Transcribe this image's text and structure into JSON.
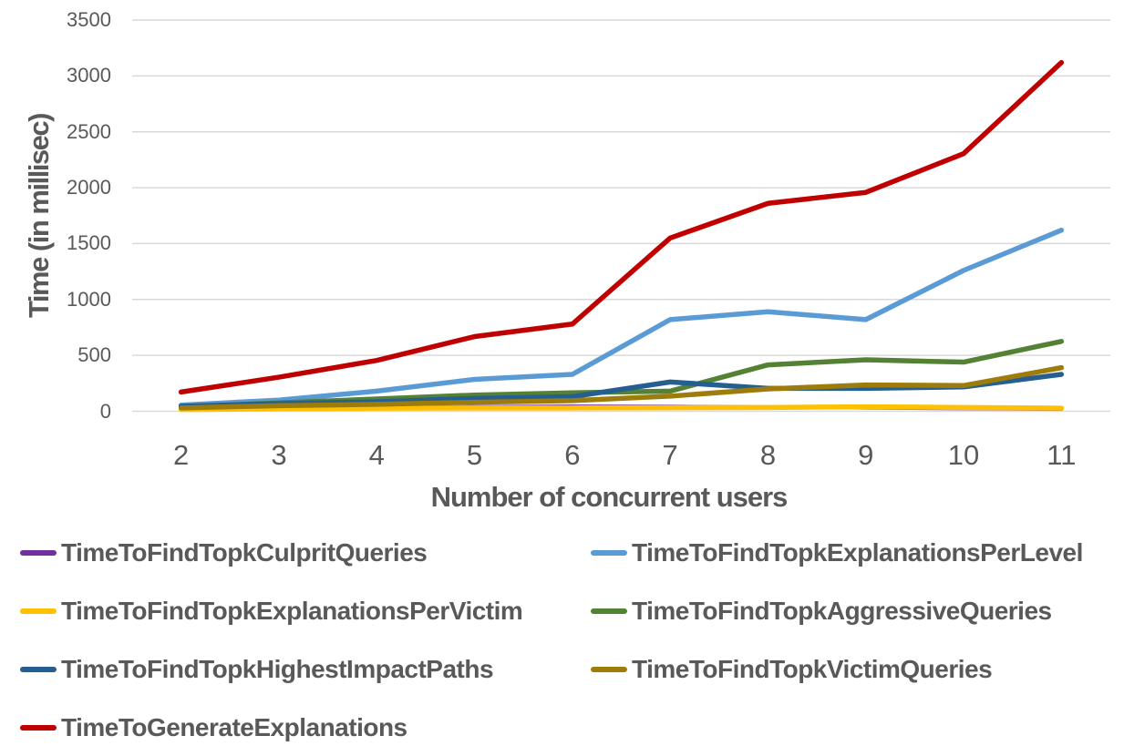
{
  "chart_data": {
    "type": "line",
    "title": "",
    "xlabel": "Number of concurrent users",
    "ylabel": "Time (in millisec)",
    "categories": [
      2,
      3,
      4,
      5,
      6,
      7,
      8,
      9,
      10,
      11
    ],
    "ylim": [
      0,
      3500
    ],
    "ytick_interval": 500,
    "yticks": [
      0,
      500,
      1000,
      1500,
      2000,
      2500,
      3000,
      3500
    ],
    "grid": "horizontal",
    "gridline_color": "#D9D9D9",
    "axis_text_color": "#595959",
    "legend_position": "bottom-two-columns",
    "series": [
      {
        "name": "TimeToFindTopkCulpritQueries",
        "color": "#7030A0",
        "values": [
          12,
          22,
          32,
          40,
          44,
          42,
          38,
          32,
          25,
          20
        ]
      },
      {
        "name": "TimeToFindTopkExplanationsPerLevel",
        "color": "#5B9BD5",
        "values": [
          55,
          100,
          180,
          285,
          330,
          820,
          890,
          820,
          1260,
          1620
        ]
      },
      {
        "name": "TimeToFindTopkExplanationsPerVictim",
        "color": "#FFC000",
        "values": [
          15,
          22,
          27,
          30,
          30,
          32,
          34,
          40,
          34,
          28
        ]
      },
      {
        "name": "TimeToFindTopkAggressiveQueries",
        "color": "#548235",
        "values": [
          40,
          75,
          110,
          145,
          165,
          180,
          415,
          460,
          440,
          625
        ]
      },
      {
        "name": "TimeToFindTopkHighestImpactPaths",
        "color": "#255E91",
        "values": [
          45,
          68,
          85,
          115,
          130,
          262,
          205,
          205,
          218,
          330
        ]
      },
      {
        "name": "TimeToFindTopkVictimQueries",
        "color": "#9E7C0C",
        "values": [
          30,
          50,
          62,
          80,
          95,
          135,
          200,
          235,
          230,
          390
        ]
      },
      {
        "name": "TimeToGenerateExplanations",
        "color": "#C00000",
        "values": [
          172,
          305,
          455,
          668,
          780,
          1550,
          1860,
          1958,
          2305,
          3120
        ]
      }
    ]
  },
  "layout_note": "line chart, legend below axis title in two columns, last row single item"
}
